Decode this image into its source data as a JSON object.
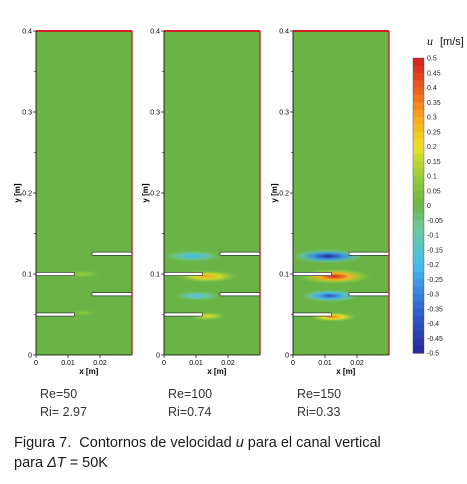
{
  "chart_data": [
    {
      "type": "heatmap",
      "xlabel": "x [m]",
      "ylabel": "y [m]",
      "xlim": [
        0,
        0.03
      ],
      "ylim": [
        0,
        0.4
      ],
      "xticks": [
        "0",
        "0.01",
        "0.02"
      ],
      "yticks": [
        "0",
        "0.1",
        "0.2",
        "0.3",
        "0.4"
      ],
      "annotation": [
        "Re=50",
        "Ri= 2.97"
      ],
      "plates": [
        {
          "x_start": 0.0,
          "x_end": 0.012,
          "y": 0.1
        },
        {
          "x_start": 0.0,
          "x_end": 0.012,
          "y": 0.05
        },
        {
          "x_start": 0.0175,
          "x_end": 0.03,
          "y": 0.125
        },
        {
          "x_start": 0.0175,
          "x_end": 0.03,
          "y": 0.075
        }
      ],
      "features": [
        {
          "x": 0.0145,
          "y": 0.1,
          "u": 0.1,
          "rx": 0.004,
          "ry": 0.006
        },
        {
          "x": 0.0145,
          "y": 0.052,
          "u": 0.08,
          "rx": 0.003,
          "ry": 0.005
        }
      ]
    },
    {
      "type": "heatmap",
      "xlabel": "x [m]",
      "ylabel": "y [m]",
      "xlim": [
        0,
        0.03
      ],
      "ylim": [
        0,
        0.4
      ],
      "xticks": [
        "0",
        "0.01",
        "0.02"
      ],
      "yticks": [
        "0",
        "0.1",
        "0.2",
        "0.3",
        "0.4"
      ],
      "annotation": [
        "Re=100",
        "Ri=0.74"
      ],
      "plates": [
        {
          "x_start": 0.0,
          "x_end": 0.012,
          "y": 0.1
        },
        {
          "x_start": 0.0,
          "x_end": 0.012,
          "y": 0.05
        },
        {
          "x_start": 0.0175,
          "x_end": 0.03,
          "y": 0.125
        },
        {
          "x_start": 0.0175,
          "x_end": 0.03,
          "y": 0.075
        }
      ],
      "features": [
        {
          "x": 0.009,
          "y": 0.122,
          "u": -0.22,
          "rx": 0.006,
          "ry": 0.008
        },
        {
          "x": 0.0135,
          "y": 0.097,
          "u": 0.3,
          "rx": 0.0065,
          "ry": 0.009
        },
        {
          "x": 0.0105,
          "y": 0.073,
          "u": -0.18,
          "rx": 0.005,
          "ry": 0.007
        },
        {
          "x": 0.0135,
          "y": 0.048,
          "u": 0.22,
          "rx": 0.004,
          "ry": 0.006
        }
      ]
    },
    {
      "type": "heatmap",
      "xlabel": "x [m]",
      "ylabel": "y [m]",
      "xlim": [
        0,
        0.03
      ],
      "ylim": [
        0,
        0.4
      ],
      "xticks": [
        "0",
        "0.01",
        "0.02"
      ],
      "yticks": [
        "0",
        "0.1",
        "0.2",
        "0.3",
        "0.4"
      ],
      "annotation": [
        "Re=150",
        "Ri=0.33"
      ],
      "plates": [
        {
          "x_start": 0.0,
          "x_end": 0.012,
          "y": 0.1
        },
        {
          "x_start": 0.0,
          "x_end": 0.012,
          "y": 0.05
        },
        {
          "x_start": 0.0175,
          "x_end": 0.03,
          "y": 0.125
        },
        {
          "x_start": 0.0175,
          "x_end": 0.03,
          "y": 0.075
        }
      ],
      "features": [
        {
          "x": 0.011,
          "y": 0.122,
          "u": -0.5,
          "rx": 0.0075,
          "ry": 0.01
        },
        {
          "x": 0.013,
          "y": 0.097,
          "u": 0.5,
          "rx": 0.0075,
          "ry": 0.011
        },
        {
          "x": 0.0115,
          "y": 0.073,
          "u": -0.4,
          "rx": 0.006,
          "ry": 0.009
        },
        {
          "x": 0.0125,
          "y": 0.047,
          "u": 0.35,
          "rx": 0.005,
          "ry": 0.007
        }
      ]
    }
  ],
  "colorbar": {
    "title_var": "u",
    "title_unit": "[m/s]",
    "range": [
      -0.5,
      0.5
    ],
    "labels": [
      "0.5",
      "0.45",
      "0.4",
      "0.35",
      "0.3",
      "0.25",
      "0.2",
      "0.15",
      "0.1",
      "0.05",
      "0",
      "-0.05",
      "-0.1",
      "-0.15",
      "-0.2",
      "-0.25",
      "-0.3",
      "-0.35",
      "-0.4",
      "-0.45",
      "-0.5"
    ]
  },
  "colors": {
    "background_field": "#6ab446",
    "top_border": "#d32020",
    "right_border": "#c0272d"
  },
  "caption": {
    "label": "Figura 7.",
    "text_before": "Contornos de velocidad",
    "variable": "u",
    "text_after": "para el canal vertical",
    "line2_prefix": "para",
    "delta": "ΔT",
    "line2_suffix": "= 50K"
  }
}
